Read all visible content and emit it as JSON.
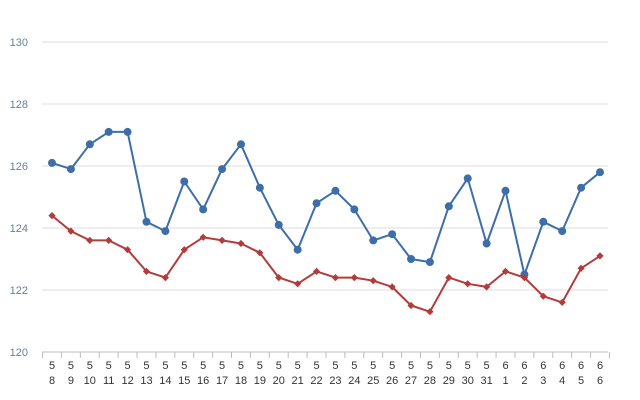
{
  "chart_data": {
    "type": "line",
    "title": "",
    "xlabel": "",
    "ylabel": "",
    "ylim": [
      120,
      130
    ],
    "yticks": [
      120,
      122,
      124,
      126,
      128,
      130
    ],
    "grid": true,
    "categories": [
      [
        "5",
        "8"
      ],
      [
        "5",
        "9"
      ],
      [
        "5",
        "10"
      ],
      [
        "5",
        "11"
      ],
      [
        "5",
        "12"
      ],
      [
        "5",
        "13"
      ],
      [
        "5",
        "14"
      ],
      [
        "5",
        "15"
      ],
      [
        "5",
        "16"
      ],
      [
        "5",
        "17"
      ],
      [
        "5",
        "18"
      ],
      [
        "5",
        "19"
      ],
      [
        "5",
        "20"
      ],
      [
        "5",
        "21"
      ],
      [
        "5",
        "22"
      ],
      [
        "5",
        "23"
      ],
      [
        "5",
        "24"
      ],
      [
        "5",
        "25"
      ],
      [
        "5",
        "26"
      ],
      [
        "5",
        "27"
      ],
      [
        "5",
        "28"
      ],
      [
        "5",
        "29"
      ],
      [
        "5",
        "30"
      ],
      [
        "5",
        "31"
      ],
      [
        "6",
        "1"
      ],
      [
        "6",
        "2"
      ],
      [
        "6",
        "3"
      ],
      [
        "6",
        "4"
      ],
      [
        "6",
        "5"
      ],
      [
        "6",
        "6"
      ]
    ],
    "series": [
      {
        "color": "#3d6ea8",
        "marker": "circle",
        "values": [
          126.1,
          125.9,
          126.7,
          127.1,
          127.1,
          124.2,
          123.9,
          125.5,
          124.6,
          125.9,
          126.7,
          125.3,
          124.1,
          123.3,
          124.8,
          125.2,
          124.6,
          123.6,
          123.8,
          123.0,
          122.9,
          124.7,
          125.6,
          123.5,
          125.2,
          122.5,
          124.2,
          123.9,
          125.3,
          125.8
        ]
      },
      {
        "color": "#b23b3b",
        "marker": "diamond",
        "values": [
          124.4,
          123.9,
          123.6,
          123.6,
          123.3,
          122.6,
          122.4,
          123.3,
          123.7,
          123.6,
          123.5,
          123.2,
          122.4,
          122.2,
          122.6,
          122.4,
          122.4,
          122.3,
          122.1,
          121.5,
          121.3,
          122.4,
          122.2,
          122.1,
          122.6,
          122.4,
          121.8,
          121.6,
          122.7,
          123.1
        ]
      }
    ]
  }
}
